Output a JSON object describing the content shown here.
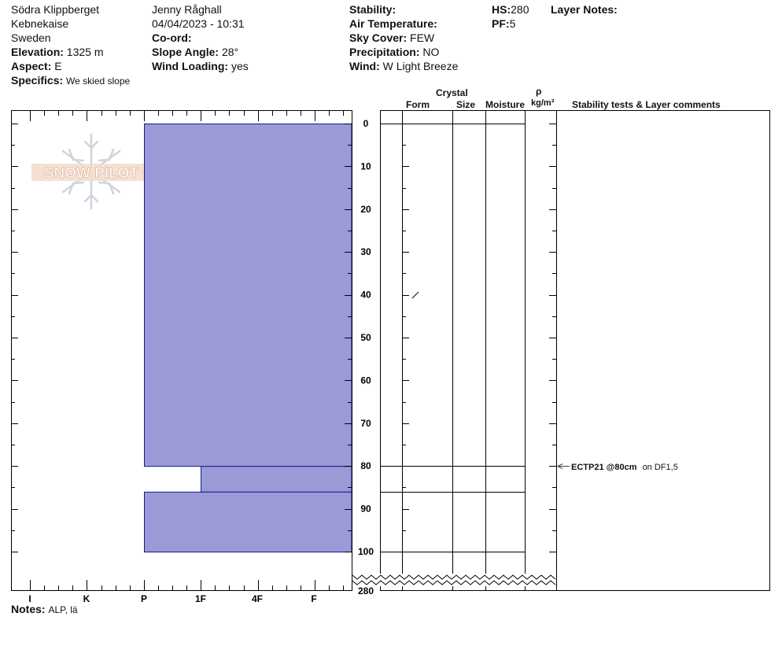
{
  "site": {
    "location": "Södra Klippberget",
    "area": "Kebnekaise",
    "country": "Sweden",
    "elevation_label": "Elevation:",
    "elevation": "1325 m",
    "aspect_label": "Aspect:",
    "aspect": "E",
    "specifics_label": "Specifics:",
    "specifics": "We skied slope"
  },
  "observer": {
    "name": "Jenny Råghall",
    "datetime": "04/04/2023 - 10:31",
    "coord_label": "Co-ord:",
    "coord": "",
    "slope_angle_label": "Slope Angle:",
    "slope_angle": "28°",
    "wind_loading_label": "Wind Loading:",
    "wind_loading": "yes"
  },
  "conditions": {
    "stability_label": "Stability:",
    "stability": "",
    "air_temp_label": "Air Temperature:",
    "air_temp": "",
    "sky_cover_label": "Sky Cover:",
    "sky_cover": "FEW",
    "precip_label": "Precipitation:",
    "precip": "NO",
    "wind_label": "Wind:",
    "wind": "W Light Breeze"
  },
  "summary": {
    "hs_label": "HS:",
    "hs": "280",
    "pf_label": "PF:",
    "pf": "5",
    "layer_notes_label": "Layer Notes:"
  },
  "columns": {
    "crystal": "Crystal",
    "form": "Form",
    "size": "Size",
    "moisture": "Moisture",
    "rho": "ρ",
    "density_unit": "kg/m³",
    "stability_tests": "Stability tests & Layer comments"
  },
  "notes": {
    "label": "Notes:",
    "text": "ALP, lä"
  },
  "logo_text": "SNOW PILOT",
  "stability_test": {
    "depth_cm": 80,
    "code": "ECTP21 @80cm",
    "comment": "on DF1,5"
  },
  "chart_data": {
    "type": "snow-profile-hardness",
    "hardness_axis_labels": [
      "I",
      "K",
      "P",
      "1F",
      "4F",
      "F"
    ],
    "depth_ticks": [
      0,
      10,
      20,
      30,
      40,
      50,
      60,
      70,
      80,
      90,
      100
    ],
    "depth_bottom_label": "280",
    "depth_range_cm": [
      0,
      100
    ],
    "layers": [
      {
        "top_cm": 0,
        "bottom_cm": 80,
        "hardness": "P"
      },
      {
        "top_cm": 80,
        "bottom_cm": 86,
        "hardness": "1F"
      },
      {
        "top_cm": 86,
        "bottom_cm": 100,
        "hardness": "P"
      }
    ],
    "layer_boundaries_cm": [
      0,
      80,
      86,
      100
    ],
    "fill_color": "#9a9ad6",
    "edge_color": "#1a1a8c"
  }
}
